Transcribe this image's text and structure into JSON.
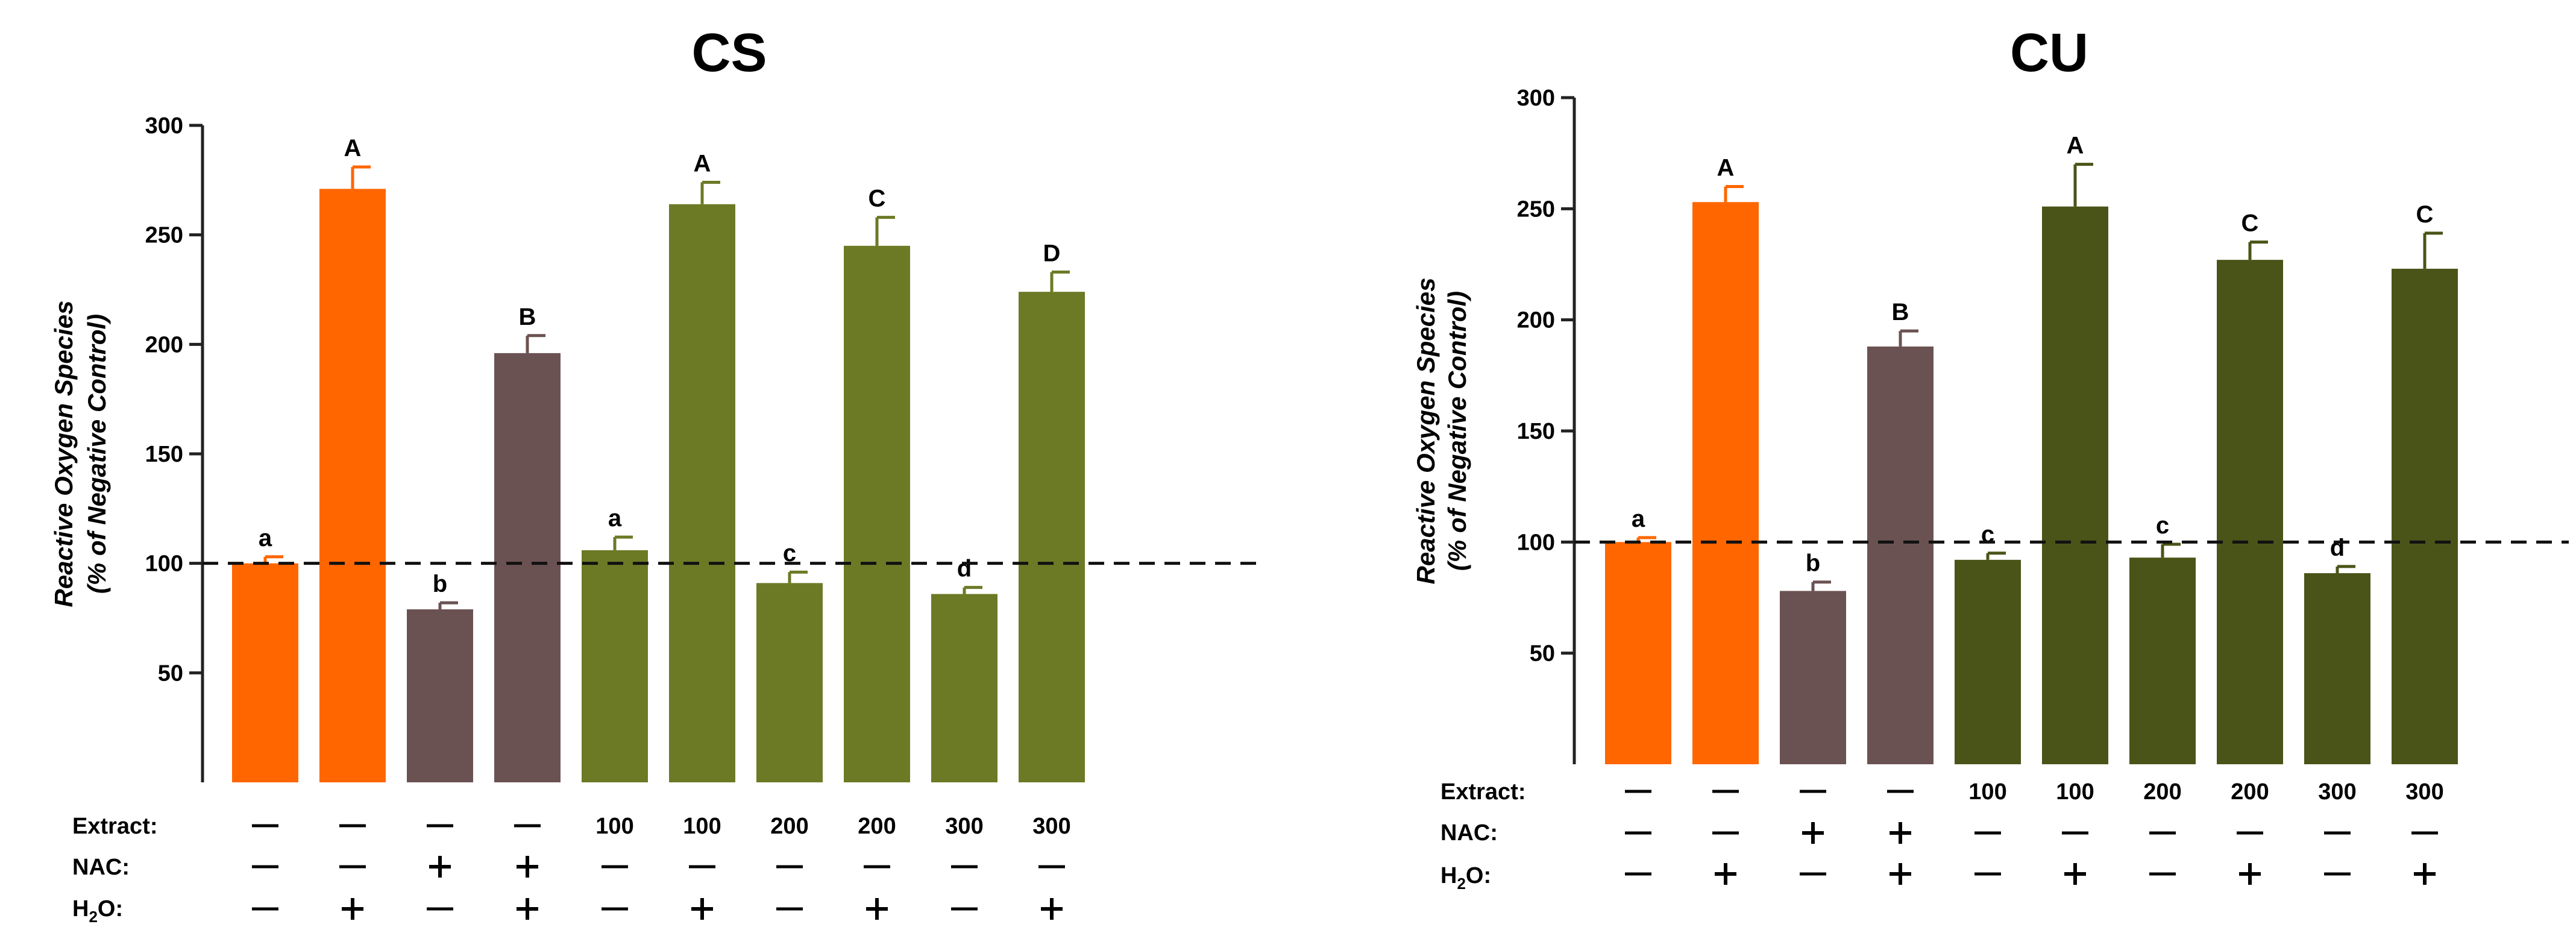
{
  "chart_data": [
    {
      "type": "bar",
      "title": "CS",
      "ylabel_line1": "Reactive Oxygen Species",
      "ylabel_line2": "(% of Negative Control)",
      "ylim": [
        0,
        300
      ],
      "yticks": [
        50,
        100,
        150,
        200,
        250,
        300
      ],
      "reference_line": 100,
      "values": [
        100,
        271,
        79,
        196,
        106,
        264,
        91,
        245,
        86,
        224
      ],
      "errors": [
        3,
        10,
        3,
        8,
        6,
        10,
        5,
        13,
        3,
        9
      ],
      "letters": [
        "a",
        "A",
        "b",
        "B",
        "a",
        "A",
        "c",
        "C",
        "d",
        "D"
      ],
      "colors": [
        "#FF6600",
        "#FF6600",
        "#6B5252",
        "#6B5252",
        "#6C7A25",
        "#6C7A25",
        "#6C7A25",
        "#6C7A25",
        "#6C7A25",
        "#6C7A25"
      ],
      "treatments": {
        "extract": [
          "—",
          "—",
          "—",
          "—",
          "100",
          "100",
          "200",
          "200",
          "300",
          "300"
        ],
        "nac": [
          "—",
          "—",
          "+",
          "+",
          "—",
          "—",
          "—",
          "—",
          "—",
          "—"
        ],
        "h2o2": [
          "—",
          "+",
          "—",
          "+",
          "—",
          "+",
          "—",
          "+",
          "—",
          "+"
        ]
      }
    },
    {
      "type": "bar",
      "title": "CU",
      "ylabel_line1": "Reactive Oxygen Species",
      "ylabel_line2": "(% of Negative Control)",
      "ylim": [
        0,
        300
      ],
      "yticks": [
        50,
        100,
        150,
        200,
        250,
        300
      ],
      "reference_line": 100,
      "values": [
        100,
        253,
        78,
        188,
        92,
        251,
        93,
        227,
        86,
        223
      ],
      "errors": [
        2,
        7,
        4,
        7,
        3,
        19,
        6,
        8,
        3,
        16
      ],
      "letters": [
        "a",
        "A",
        "b",
        "B",
        "c",
        "A",
        "c",
        "C",
        "d",
        "C"
      ],
      "colors": [
        "#FF6600",
        "#FF6600",
        "#6B5252",
        "#6B5252",
        "#4A5418",
        "#4A5418",
        "#4A5418",
        "#4A5418",
        "#4A5418",
        "#4A5418"
      ],
      "treatments": {
        "extract": [
          "—",
          "—",
          "—",
          "—",
          "100",
          "100",
          "200",
          "200",
          "300",
          "300"
        ],
        "nac": [
          "—",
          "—",
          "+",
          "+",
          "—",
          "—",
          "—",
          "—",
          "—",
          "—"
        ],
        "h2o2": [
          "—",
          "+",
          "—",
          "+",
          "—",
          "+",
          "—",
          "+",
          "—",
          "+"
        ]
      }
    }
  ],
  "row_labels": {
    "extract": "Extract:",
    "nac": "NAC:",
    "h2o2_main": "H",
    "h2o2_sub": "2",
    "h2o2_o": "O",
    "h2o2_colon": ":"
  }
}
